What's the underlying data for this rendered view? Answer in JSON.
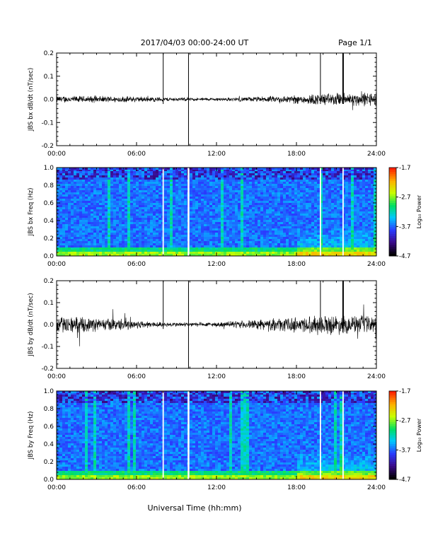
{
  "header": {
    "title": "2017/04/03  00:00-24:00 UT",
    "page": "Page 1/1"
  },
  "xlabel": "Universal Time (hh:mm)",
  "x_ticks": [
    "00:00",
    "06:00",
    "12:00",
    "18:00",
    "24:00"
  ],
  "colors": {
    "trace": "#000000",
    "colorbar": [
      "#000000",
      "#3b0a8a",
      "#2a3cff",
      "#00c8ff",
      "#00e060",
      "#c8ff00",
      "#ffb000",
      "#ff2000"
    ]
  },
  "chart_data": [
    {
      "type": "line",
      "id": "bx_dbdt",
      "ylabel": "JBS bx dB/dt (nT/sec)",
      "ylim": [
        -0.2,
        0.2
      ],
      "y_ticks": [
        "-0.2",
        "-0.1",
        "0.0",
        "0.1",
        "0.2"
      ],
      "x_range_hours": [
        0,
        24
      ],
      "spikes_hours": [
        8.0,
        9.9,
        19.8,
        21.5
      ],
      "baseline_noise": [
        {
          "hour": 0,
          "amp": 0.012
        },
        {
          "hour": 6,
          "amp": 0.01
        },
        {
          "hour": 9,
          "amp": 0.006
        },
        {
          "hour": 12,
          "amp": 0.005
        },
        {
          "hour": 16,
          "amp": 0.01
        },
        {
          "hour": 20,
          "amp": 0.02
        },
        {
          "hour": 24,
          "amp": 0.025
        }
      ]
    },
    {
      "type": "heatmap",
      "id": "bx_freq",
      "ylabel": "JBS bx Freq (Hz)",
      "ylim": [
        0.0,
        1.0
      ],
      "y_ticks": [
        "0.0",
        "0.2",
        "0.4",
        "0.6",
        "0.8",
        "1.0"
      ],
      "colorbar_label": "Log₁₀ Power",
      "colorbar_ticks": [
        "-1.7",
        "-2.7",
        "-3.7",
        "-4.7"
      ],
      "zlim": [
        -4.7,
        -1.7
      ],
      "gap_lines_hours": [
        8.0,
        9.9,
        19.8,
        21.5
      ]
    },
    {
      "type": "line",
      "id": "by_dbdt",
      "ylabel": "JBS by dB/dt (nT/sec)",
      "ylim": [
        -0.2,
        0.2
      ],
      "y_ticks": [
        "-0.2",
        "-0.1",
        "0.0",
        "0.1",
        "0.2"
      ],
      "x_range_hours": [
        0,
        24
      ],
      "spikes_hours": [
        8.0,
        9.9,
        19.8,
        21.5
      ],
      "baseline_noise": [
        {
          "hour": 0,
          "amp": 0.03
        },
        {
          "hour": 5,
          "amp": 0.02
        },
        {
          "hour": 8,
          "amp": 0.008
        },
        {
          "hour": 12,
          "amp": 0.008
        },
        {
          "hour": 16,
          "amp": 0.02
        },
        {
          "hour": 20,
          "amp": 0.035
        },
        {
          "hour": 24,
          "amp": 0.03
        }
      ]
    },
    {
      "type": "heatmap",
      "id": "by_freq",
      "ylabel": "JBS by Freq (Hz)",
      "ylim": [
        0.0,
        1.0
      ],
      "y_ticks": [
        "0.0",
        "0.2",
        "0.4",
        "0.6",
        "0.8",
        "1.0"
      ],
      "colorbar_label": "Log₁₀ Power",
      "colorbar_ticks": [
        "-1.7",
        "-2.7",
        "-3.7",
        "-4.7"
      ],
      "zlim": [
        -4.7,
        -1.7
      ],
      "gap_lines_hours": [
        8.0,
        9.9,
        19.8,
        21.5
      ]
    }
  ]
}
